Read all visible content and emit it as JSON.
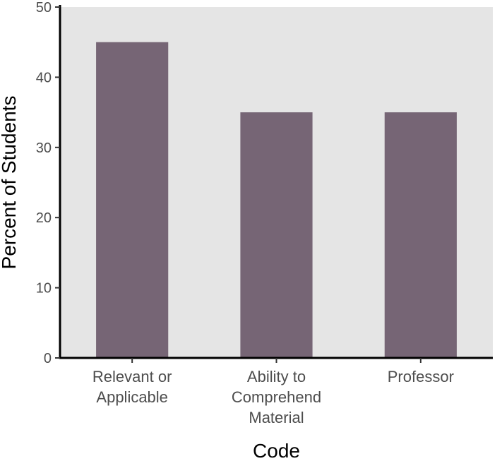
{
  "chart_data": {
    "type": "bar",
    "categories": [
      [
        "Relevant or",
        "Applicable"
      ],
      [
        "Ability to",
        "Comprehend",
        "Material"
      ],
      [
        "Professor"
      ]
    ],
    "values": [
      45,
      35,
      35
    ],
    "xlabel": "Code",
    "ylabel": "Percent of Students",
    "ylim": [
      0,
      50
    ],
    "yticks": [
      0,
      10,
      20,
      30,
      40,
      50
    ],
    "grid": false,
    "legend": "none",
    "colors": {
      "panel_background": "#e5e5e5",
      "bar": "#766575",
      "axis_line": "#000000"
    }
  }
}
